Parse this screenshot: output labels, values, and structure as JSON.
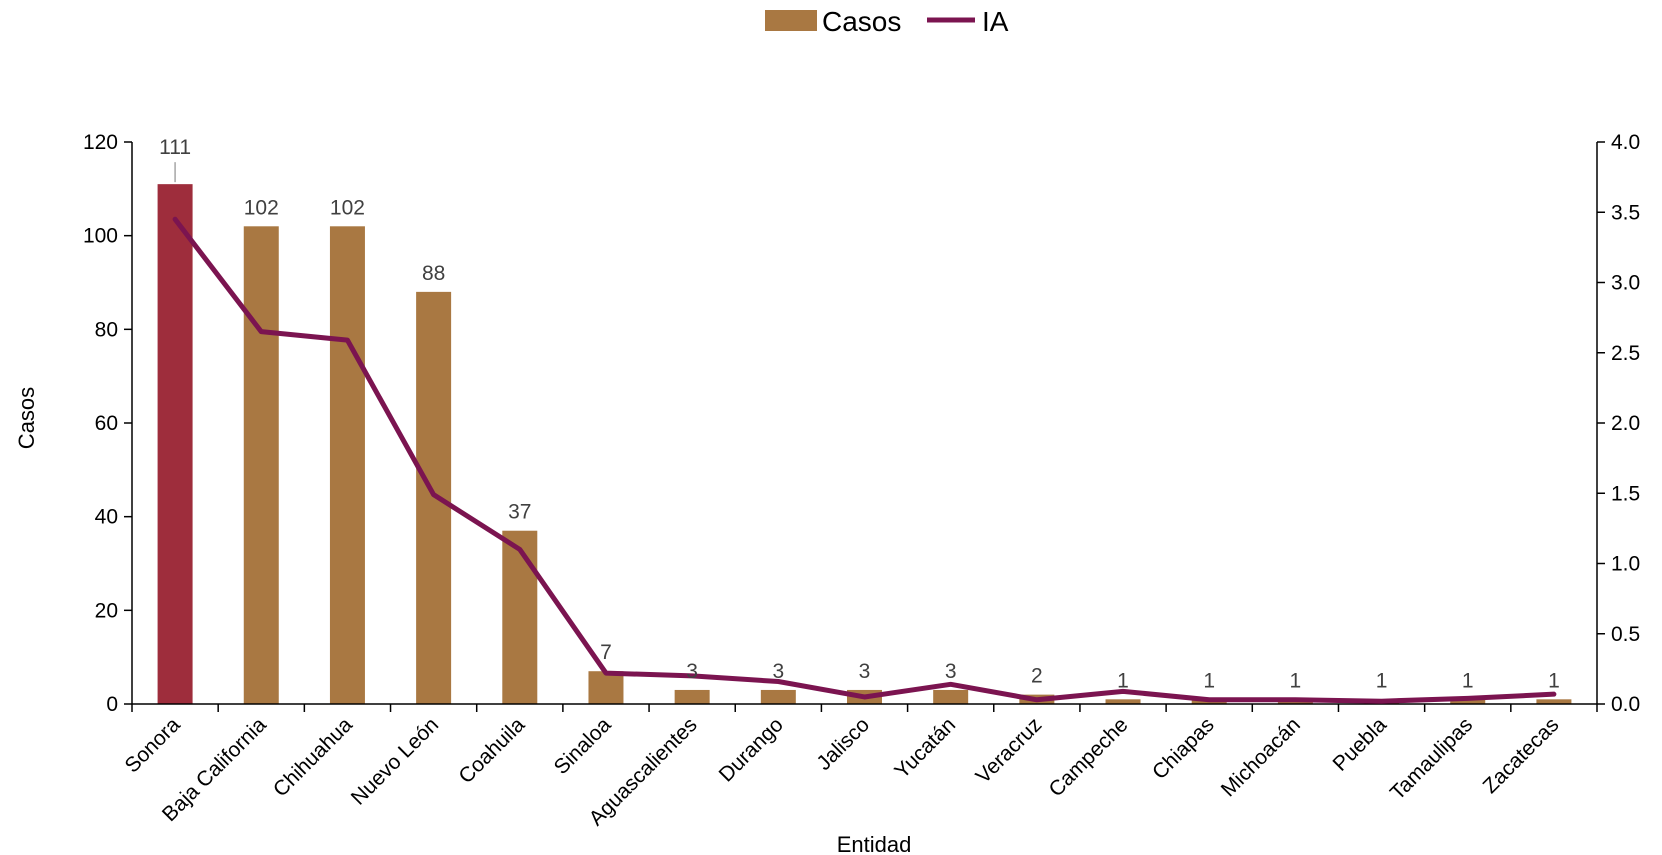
{
  "chart_data": {
    "type": "bar",
    "title": "",
    "xlabel": "Entidad",
    "ylabel": "Casos",
    "y2label": "",
    "ylim": [
      0,
      120
    ],
    "yticks": [
      "0",
      "20",
      "40",
      "60",
      "80",
      "100",
      "120"
    ],
    "y2lim": [
      0,
      4.0
    ],
    "y2ticks": [
      "0.0",
      "0.5",
      "1.0",
      "1.5",
      "2.0",
      "2.5",
      "3.0",
      "3.5",
      "4.0"
    ],
    "grid": false,
    "legend_position": "top-center",
    "categories": [
      "Sonora",
      "Baja California",
      "Chihuahua",
      "Nuevo León",
      "Coahuila",
      "Sinaloa",
      "Aguascalientes",
      "Durango",
      "Jalisco",
      "Yucatán",
      "Veracruz",
      "Campeche",
      "Chiapas",
      "Michoacán",
      "Puebla",
      "Tamaulipas",
      "Zacatecas"
    ],
    "series": [
      {
        "name": "Casos",
        "type": "bar",
        "axis": "left",
        "color": "#a97842",
        "highlight_color": "#9e2d3c",
        "highlight_index": 0,
        "values": [
          111,
          102,
          102,
          88,
          37,
          7,
          3,
          3,
          3,
          3,
          2,
          1,
          1,
          1,
          1,
          1,
          1
        ],
        "labels": [
          "111",
          "102",
          "102",
          "88",
          "37",
          "7",
          "3",
          "3",
          "3",
          "3",
          "2",
          "1",
          "1",
          "1",
          "1",
          "1",
          "1"
        ]
      },
      {
        "name": "IA",
        "type": "line",
        "axis": "right",
        "color": "#7b1450",
        "values": [
          3.45,
          2.65,
          2.59,
          1.49,
          1.1,
          0.22,
          0.2,
          0.16,
          0.05,
          0.14,
          0.03,
          0.09,
          0.03,
          0.03,
          0.02,
          0.04,
          0.07
        ]
      }
    ]
  }
}
